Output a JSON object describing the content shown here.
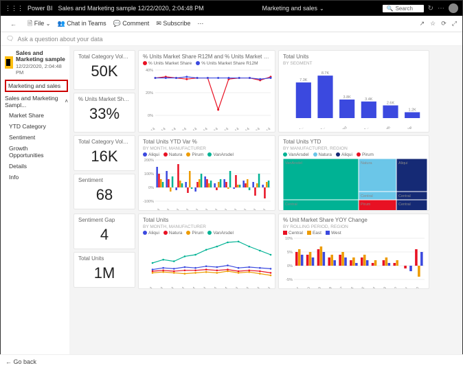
{
  "app_name": "Power BI",
  "file_title": "Sales and Marketing sample 12/22/2020, 2:04:48 PM",
  "center_title": "Marketing and sales",
  "search_placeholder": "Search",
  "cmdbar": {
    "file": "File",
    "chat": "Chat in Teams",
    "comment": "Comment",
    "subscribe": "Subscribe"
  },
  "ask_prompt": "Ask a question about your data",
  "workspace": {
    "name": "Sales and Marketing sample",
    "ts": "12/22/2020, 2:04:48 PM"
  },
  "active_dashboard": "Marketing and sales",
  "tree_root": "Sales and Marketing Sampl...",
  "nav": [
    "Market Share",
    "YTD Category",
    "Sentiment",
    "Growth Opportunities",
    "Details",
    "Info"
  ],
  "footer_back": "Go back",
  "kpis": {
    "tcv": {
      "title": "Total Category Volume",
      "value": "50K"
    },
    "ums": {
      "title": "% Units Market Share",
      "value": "33%"
    },
    "tcv2": {
      "title": "Total Category Volume",
      "value": "16K"
    },
    "sent": {
      "title": "Sentiment",
      "value": "68"
    },
    "gap": {
      "title": "Sentiment Gap",
      "value": "4"
    },
    "tu": {
      "title": "Total Units",
      "value": "1M"
    }
  },
  "chart_share": {
    "title": "% Units Market Share R12M and % Units Market Share by Month",
    "legend": [
      "% Units Market Share",
      "% Units Market Share R12M"
    ],
    "colors": [
      "#e81123",
      "#3b49df"
    ],
    "x": [
      "Jan-14",
      "Feb-14",
      "Mar-14",
      "Apr-14",
      "May-14",
      "Jun-14",
      "Jul-14",
      "Aug-14",
      "Sep-14",
      "Oct-14",
      "Nov-14",
      "Dec-14"
    ],
    "ylim": [
      0,
      40
    ],
    "s1": [
      33,
      34,
      33,
      32,
      33,
      33,
      5,
      32,
      33,
      33,
      31,
      34
    ],
    "s2": [
      33,
      33,
      33,
      34,
      33,
      33,
      33,
      33,
      33,
      33,
      32,
      33
    ]
  },
  "chart_totalunits": {
    "title": "Total Units",
    "sub": "BY SEGMENT",
    "color": "#3b49df",
    "x": [
      "Produ...",
      "Extre...",
      "Select",
      "All Se...",
      "Youth",
      "Regular"
    ],
    "vals": [
      7.3,
      8.7,
      3.8,
      3.4,
      2.6,
      1.2
    ],
    "labels": [
      "7.3K",
      "8.7K",
      "3.8K",
      "3.4K",
      "2.6K",
      "1.2K"
    ]
  },
  "chart_ytdvar": {
    "title": "Total Units YTD Var %",
    "sub": "BY MONTH, MANUFACTURER",
    "legend": [
      "Aliqui",
      "Natura",
      "Pirum",
      "VanArsdel"
    ],
    "colors": [
      "#3b49df",
      "#e81123",
      "#ed9b00",
      "#00b294"
    ],
    "x": [
      "Jan-14",
      "Feb-14",
      "Mar-14",
      "Apr-14",
      "May-14",
      "Jun-14",
      "Jul-14",
      "Aug-14",
      "Sep-14",
      "Oct-14",
      "Nov-14",
      "Dec-14"
    ],
    "ylim": [
      -100,
      200
    ],
    "series": [
      [
        150,
        120,
        -20,
        40,
        -30,
        80,
        30,
        60,
        -10,
        50,
        40,
        20
      ],
      [
        100,
        60,
        170,
        -40,
        40,
        60,
        -20,
        40,
        90,
        30,
        -60,
        -80
      ],
      [
        60,
        -30,
        50,
        120,
        60,
        30,
        40,
        -10,
        20,
        60,
        30,
        40
      ],
      [
        40,
        80,
        30,
        -10,
        100,
        50,
        60,
        120,
        20,
        -20,
        100,
        50
      ]
    ]
  },
  "chart_treemap": {
    "title": "Total Units YTD",
    "sub": "BY MANUFACTURER, REGION",
    "legend": [
      "VanArsdel",
      "Natura",
      "Aliqui",
      "Pirum"
    ],
    "colors": [
      "#00b294",
      "#6bc6e8",
      "#152a75",
      "#e81123"
    ],
    "regions": [
      "VanArsdel",
      "Natura",
      "Aliqui",
      "Pirum",
      "Central",
      "Central",
      "Central",
      "Central"
    ]
  },
  "chart_lines": {
    "title": "Total Units",
    "sub": "BY MONTH, MANUFACTURER",
    "legend": [
      "Aliqui",
      "Natura",
      "Pirum",
      "VanArsdel"
    ],
    "colors": [
      "#3b49df",
      "#e81123",
      "#ed9b00",
      "#00b294"
    ],
    "x": [
      "Jan-14",
      "Feb-14",
      "Mar-14",
      "Apr-14",
      "May-14",
      "Jun-14",
      "Jul-14",
      "Aug-14",
      "Sep-14",
      "Oct-14",
      "Nov-14",
      "Dec-14"
    ],
    "series": [
      [
        12,
        14,
        13,
        15,
        14,
        16,
        15,
        17,
        14,
        15,
        14,
        13
      ],
      [
        10,
        11,
        10,
        11,
        11,
        12,
        11,
        12,
        10,
        11,
        10,
        8
      ],
      [
        8,
        9,
        8,
        7,
        8,
        9,
        8,
        10,
        8,
        9,
        7,
        5
      ],
      [
        20,
        24,
        22,
        28,
        30,
        36,
        40,
        45,
        46,
        40,
        35,
        30
      ]
    ]
  },
  "chart_yoy": {
    "title": "% Unit Market Share YOY Change",
    "sub": "BY ROLLING PERIOD, REGION",
    "legend": [
      "Central",
      "East",
      "West"
    ],
    "colors": [
      "#e81123",
      "#ed9b00",
      "#3b49df"
    ],
    "x": [
      "P-11",
      "P-10",
      "P-09",
      "P-08",
      "P-07",
      "P-06",
      "P-05",
      "P-04",
      "P-03",
      "P-02",
      "P-01",
      "P-00"
    ],
    "ylim": [
      -5,
      10
    ],
    "series": [
      [
        5,
        4,
        6,
        3,
        4,
        2,
        3,
        1,
        2,
        1,
        -1,
        6
      ],
      [
        6,
        5,
        7,
        4,
        5,
        3,
        4,
        2,
        3,
        2,
        0,
        -4
      ],
      [
        4,
        3,
        5,
        2,
        3,
        1,
        2,
        0,
        1,
        0,
        -2,
        5
      ]
    ]
  }
}
